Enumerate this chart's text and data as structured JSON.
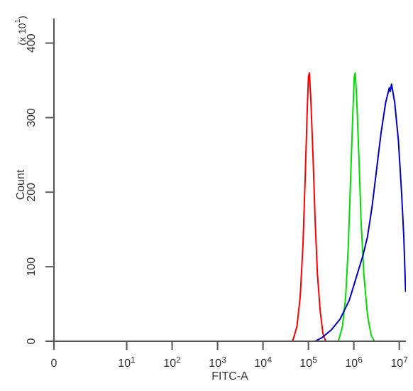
{
  "chart_data": {
    "type": "line",
    "xlabel": "FITC-A",
    "ylabel": "Count",
    "annotations": [
      "(x 10$^{1}$)"
    ],
    "log": "x",
    "marker": "none",
    "xlim": [
      0.25,
      14000000
    ],
    "ylim": [
      0,
      433
    ],
    "xticks": [
      {
        "value": 0.25,
        "label": "0"
      },
      {
        "value": 10,
        "label": "10$^{1}$"
      },
      {
        "value": 100,
        "label": "10$^{2}$"
      },
      {
        "value": 1000,
        "label": "10$^{3}$"
      },
      {
        "value": 10000,
        "label": "10$^{4}$"
      },
      {
        "value": 100000,
        "label": "10$^{5}$"
      },
      {
        "value": 1000000,
        "label": "10$^{6}$"
      },
      {
        "value": 10000000,
        "label": "10$^{7}$"
      }
    ],
    "yticks": [
      0,
      100,
      200,
      300,
      400
    ],
    "series": [
      {
        "color": "#ff0000",
        "x": [
          45000,
          56000,
          66000,
          76000,
          85000,
          93000,
          100000,
          105000,
          112000,
          126000,
          141000,
          158000,
          182000,
          209000,
          240000
        ],
        "values": [
          0,
          20,
          60,
          130,
          220,
          300,
          355,
          360,
          330,
          250,
          160,
          90,
          40,
          10,
          0
        ]
      },
      {
        "color": "#00dd00",
        "x": [
          457000,
          562000,
          661000,
          759000,
          851000,
          955000,
          1023000,
          1072000,
          1148000,
          1288000,
          1445000,
          1660000,
          1995000,
          2399000,
          2818000
        ],
        "values": [
          0,
          20,
          60,
          130,
          220,
          310,
          355,
          360,
          330,
          250,
          160,
          90,
          35,
          8,
          0
        ]
      },
      {
        "color": "#0000cc",
        "x": [
          141000,
          200000,
          316000,
          501000,
          794000,
          1122000,
          1585000,
          1995000,
          2512000,
          3162000,
          3981000,
          5012000,
          6026000,
          6310000,
          6761000,
          7943000,
          9550000,
          11220000,
          12590000,
          13800000
        ],
        "values": [
          0,
          5,
          15,
          30,
          55,
          85,
          115,
          140,
          180,
          230,
          280,
          320,
          340,
          335,
          345,
          320,
          270,
          200,
          140,
          66
        ]
      }
    ]
  }
}
